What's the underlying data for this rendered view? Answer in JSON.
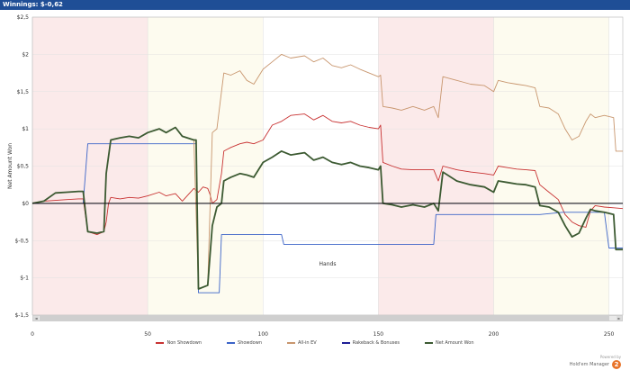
{
  "header": {
    "title": "Winnings: $-0,62"
  },
  "brand": {
    "powered": "Powered by",
    "name": "Hold'em Manager",
    "logo_glyph": "2",
    "logo_color": "#e8742b"
  },
  "scrollbar": {
    "left_icon": "◄",
    "right_icon": "►",
    "thumb_icon": "⋮"
  },
  "chart_data": {
    "type": "line",
    "xlabel": "Hands",
    "ylabel": "Net Amount Won",
    "xlim": [
      0,
      256
    ],
    "ylim": [
      -1.5,
      2.5
    ],
    "xticks": [
      0,
      50,
      100,
      150,
      200,
      250
    ],
    "yticks": [
      {
        "value": 2.5,
        "label": "$2,5"
      },
      {
        "value": 2,
        "label": "$2"
      },
      {
        "value": 1.5,
        "label": "$1,5"
      },
      {
        "value": 1,
        "label": "$1"
      },
      {
        "value": 0.5,
        "label": "$0,5"
      },
      {
        "value": 0,
        "label": "$0"
      },
      {
        "value": -0.5,
        "label": "$-0,5"
      },
      {
        "value": -1,
        "label": "$-1"
      },
      {
        "value": -1.5,
        "label": "$-1,5"
      }
    ],
    "grid": true,
    "legend_position": "bottom",
    "series": [
      {
        "name": "Non Showdown",
        "color": "#c83232",
        "points": [
          [
            0,
            0
          ],
          [
            5,
            0.03
          ],
          [
            10,
            0.04
          ],
          [
            15,
            0.05
          ],
          [
            20,
            0.06
          ],
          [
            22,
            0.06
          ],
          [
            24,
            -0.38
          ],
          [
            28,
            -0.42
          ],
          [
            31,
            -0.38
          ],
          [
            32,
            -0.25
          ],
          [
            33,
            0
          ],
          [
            34,
            0.08
          ],
          [
            38,
            0.06
          ],
          [
            42,
            0.08
          ],
          [
            46,
            0.07
          ],
          [
            50,
            0.1
          ],
          [
            55,
            0.15
          ],
          [
            58,
            0.1
          ],
          [
            62,
            0.13
          ],
          [
            65,
            0.03
          ],
          [
            70,
            0.2
          ],
          [
            72,
            0.15
          ],
          [
            74,
            0.22
          ],
          [
            76,
            0.2
          ],
          [
            77,
            0.12
          ],
          [
            78,
            0
          ],
          [
            80,
            0.05
          ],
          [
            82,
            0.4
          ],
          [
            83,
            0.7
          ],
          [
            86,
            0.75
          ],
          [
            90,
            0.8
          ],
          [
            93,
            0.82
          ],
          [
            96,
            0.8
          ],
          [
            100,
            0.85
          ],
          [
            104,
            1.05
          ],
          [
            108,
            1.1
          ],
          [
            112,
            1.18
          ],
          [
            118,
            1.2
          ],
          [
            122,
            1.12
          ],
          [
            126,
            1.18
          ],
          [
            130,
            1.1
          ],
          [
            134,
            1.08
          ],
          [
            138,
            1.1
          ],
          [
            142,
            1.05
          ],
          [
            146,
            1.02
          ],
          [
            150,
            1.0
          ],
          [
            151,
            1.05
          ],
          [
            152,
            0.55
          ],
          [
            156,
            0.5
          ],
          [
            160,
            0.46
          ],
          [
            165,
            0.45
          ],
          [
            170,
            0.45
          ],
          [
            174,
            0.45
          ],
          [
            176,
            0.3
          ],
          [
            178,
            0.5
          ],
          [
            184,
            0.45
          ],
          [
            190,
            0.42
          ],
          [
            196,
            0.4
          ],
          [
            200,
            0.38
          ],
          [
            202,
            0.5
          ],
          [
            206,
            0.48
          ],
          [
            210,
            0.46
          ],
          [
            214,
            0.45
          ],
          [
            218,
            0.44
          ],
          [
            220,
            0.25
          ],
          [
            224,
            0.15
          ],
          [
            228,
            0.05
          ],
          [
            231,
            -0.15
          ],
          [
            234,
            -0.25
          ],
          [
            237,
            -0.3
          ],
          [
            240,
            -0.32
          ],
          [
            242,
            -0.1
          ],
          [
            244,
            -0.03
          ],
          [
            248,
            -0.05
          ],
          [
            252,
            -0.06
          ],
          [
            256,
            -0.07
          ]
        ]
      },
      {
        "name": "Showdown",
        "color": "#3c64c8",
        "points": [
          [
            0,
            0
          ],
          [
            22,
            0
          ],
          [
            24,
            0.8
          ],
          [
            30,
            0.8
          ],
          [
            40,
            0.8
          ],
          [
            60,
            0.8
          ],
          [
            70,
            0.8
          ],
          [
            71,
            0.8
          ],
          [
            72,
            -1.2
          ],
          [
            80,
            -1.2
          ],
          [
            81,
            -1.2
          ],
          [
            82,
            -0.42
          ],
          [
            90,
            -0.42
          ],
          [
            100,
            -0.42
          ],
          [
            108,
            -0.42
          ],
          [
            109,
            -0.55
          ],
          [
            120,
            -0.55
          ],
          [
            140,
            -0.55
          ],
          [
            150,
            -0.55
          ],
          [
            160,
            -0.55
          ],
          [
            170,
            -0.55
          ],
          [
            174,
            -0.55
          ],
          [
            175,
            -0.15
          ],
          [
            190,
            -0.15
          ],
          [
            200,
            -0.15
          ],
          [
            210,
            -0.15
          ],
          [
            220,
            -0.15
          ],
          [
            230,
            -0.12
          ],
          [
            240,
            -0.12
          ],
          [
            244,
            -0.12
          ],
          [
            248,
            -0.12
          ],
          [
            250,
            -0.6
          ],
          [
            256,
            -0.6
          ]
        ]
      },
      {
        "name": "All-in EV",
        "color": "#c8966e",
        "points": [
          [
            0,
            0
          ],
          [
            5,
            0.03
          ],
          [
            10,
            0.14
          ],
          [
            15,
            0.15
          ],
          [
            20,
            0.16
          ],
          [
            22,
            0.16
          ],
          [
            24,
            -0.38
          ],
          [
            28,
            -0.4
          ],
          [
            31,
            -0.38
          ],
          [
            32,
            0.4
          ],
          [
            34,
            0.85
          ],
          [
            38,
            0.88
          ],
          [
            42,
            0.9
          ],
          [
            46,
            0.88
          ],
          [
            50,
            0.95
          ],
          [
            55,
            1.0
          ],
          [
            58,
            0.95
          ],
          [
            62,
            1.02
          ],
          [
            65,
            0.9
          ],
          [
            70,
            0.85
          ],
          [
            72,
            -1.15
          ],
          [
            76,
            -1.1
          ],
          [
            78,
            0.95
          ],
          [
            80,
            1.0
          ],
          [
            82,
            1.5
          ],
          [
            83,
            1.75
          ],
          [
            86,
            1.72
          ],
          [
            90,
            1.78
          ],
          [
            93,
            1.65
          ],
          [
            96,
            1.6
          ],
          [
            100,
            1.8
          ],
          [
            104,
            1.9
          ],
          [
            108,
            2.0
          ],
          [
            112,
            1.95
          ],
          [
            118,
            1.98
          ],
          [
            122,
            1.9
          ],
          [
            126,
            1.95
          ],
          [
            130,
            1.85
          ],
          [
            134,
            1.82
          ],
          [
            138,
            1.86
          ],
          [
            142,
            1.8
          ],
          [
            146,
            1.75
          ],
          [
            150,
            1.7
          ],
          [
            151,
            1.72
          ],
          [
            152,
            1.3
          ],
          [
            156,
            1.28
          ],
          [
            160,
            1.25
          ],
          [
            165,
            1.3
          ],
          [
            170,
            1.25
          ],
          [
            174,
            1.3
          ],
          [
            176,
            1.15
          ],
          [
            178,
            1.7
          ],
          [
            184,
            1.65
          ],
          [
            190,
            1.6
          ],
          [
            196,
            1.58
          ],
          [
            200,
            1.5
          ],
          [
            202,
            1.65
          ],
          [
            206,
            1.62
          ],
          [
            210,
            1.6
          ],
          [
            214,
            1.58
          ],
          [
            218,
            1.55
          ],
          [
            220,
            1.3
          ],
          [
            224,
            1.28
          ],
          [
            228,
            1.2
          ],
          [
            231,
            1.0
          ],
          [
            234,
            0.85
          ],
          [
            237,
            0.9
          ],
          [
            240,
            1.1
          ],
          [
            242,
            1.2
          ],
          [
            244,
            1.15
          ],
          [
            248,
            1.18
          ],
          [
            252,
            1.15
          ],
          [
            253,
            0.7
          ],
          [
            256,
            0.7
          ]
        ]
      },
      {
        "name": "Rakeback & Bonuses",
        "color": "#1e1e96",
        "points": [
          [
            0,
            0
          ],
          [
            256,
            0
          ]
        ]
      },
      {
        "name": "Net Amount Won",
        "color": "#3c5a32",
        "points": [
          [
            0,
            0
          ],
          [
            5,
            0.03
          ],
          [
            10,
            0.14
          ],
          [
            15,
            0.15
          ],
          [
            20,
            0.16
          ],
          [
            22,
            0.16
          ],
          [
            24,
            -0.38
          ],
          [
            28,
            -0.4
          ],
          [
            31,
            -0.38
          ],
          [
            32,
            0.4
          ],
          [
            34,
            0.85
          ],
          [
            38,
            0.88
          ],
          [
            42,
            0.9
          ],
          [
            46,
            0.88
          ],
          [
            50,
            0.95
          ],
          [
            55,
            1.0
          ],
          [
            58,
            0.95
          ],
          [
            62,
            1.02
          ],
          [
            65,
            0.9
          ],
          [
            70,
            0.85
          ],
          [
            71,
            0.85
          ],
          [
            72,
            -1.15
          ],
          [
            76,
            -1.1
          ],
          [
            78,
            -0.3
          ],
          [
            80,
            -0.05
          ],
          [
            82,
            0
          ],
          [
            83,
            0.3
          ],
          [
            86,
            0.35
          ],
          [
            90,
            0.4
          ],
          [
            93,
            0.38
          ],
          [
            96,
            0.35
          ],
          [
            100,
            0.55
          ],
          [
            104,
            0.62
          ],
          [
            108,
            0.7
          ],
          [
            112,
            0.65
          ],
          [
            118,
            0.68
          ],
          [
            122,
            0.58
          ],
          [
            126,
            0.62
          ],
          [
            130,
            0.55
          ],
          [
            134,
            0.52
          ],
          [
            138,
            0.55
          ],
          [
            142,
            0.5
          ],
          [
            146,
            0.48
          ],
          [
            150,
            0.45
          ],
          [
            151,
            0.5
          ],
          [
            152,
            0
          ],
          [
            156,
            -0.02
          ],
          [
            160,
            -0.05
          ],
          [
            165,
            -0.02
          ],
          [
            170,
            -0.05
          ],
          [
            174,
            0
          ],
          [
            176,
            -0.1
          ],
          [
            178,
            0.42
          ],
          [
            184,
            0.3
          ],
          [
            190,
            0.25
          ],
          [
            196,
            0.22
          ],
          [
            200,
            0.15
          ],
          [
            202,
            0.3
          ],
          [
            206,
            0.28
          ],
          [
            210,
            0.26
          ],
          [
            214,
            0.25
          ],
          [
            218,
            0.22
          ],
          [
            220,
            -0.03
          ],
          [
            224,
            -0.05
          ],
          [
            228,
            -0.12
          ],
          [
            231,
            -0.3
          ],
          [
            234,
            -0.45
          ],
          [
            237,
            -0.4
          ],
          [
            240,
            -0.2
          ],
          [
            242,
            -0.08
          ],
          [
            244,
            -0.1
          ],
          [
            248,
            -0.12
          ],
          [
            252,
            -0.15
          ],
          [
            253,
            -0.62
          ],
          [
            256,
            -0.62
          ]
        ]
      }
    ]
  }
}
